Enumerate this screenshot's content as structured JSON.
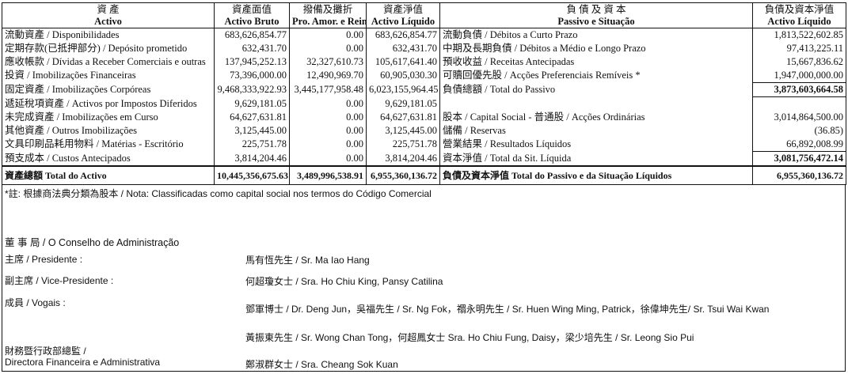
{
  "header": {
    "assets_zh": "資 產",
    "assets_pt": "Activo",
    "gross_zh": "資產面值",
    "gross_pt": "Activo Bruto",
    "amort_zh": "撥備及攤折",
    "amort_pt": "Pro. Amor. e Reinteg.",
    "net_zh": "資產淨值",
    "net_pt": "Activo Líquido",
    "liab_zh": "負 債 及 資 本",
    "liab_pt": "Passivo e Situação",
    "liabnet_zh": "負債及資本淨值",
    "liabnet_pt": "Activo Líquido"
  },
  "rows": [
    {
      "asset": "流動資產 / Disponibilidades",
      "gross": "683,626,854.77",
      "amort": "0.00",
      "net": "683,626,854.77",
      "liab": "流動負債 / Débitos a Curto Prazo",
      "lval": "1,813,522,602.85"
    },
    {
      "asset": "定期存款(已抵押部分) / Depósito prometido",
      "gross": "632,431.70",
      "amort": "0.00",
      "net": "632,431.70",
      "liab": "中期及長期負債 / Débitos a Médio e Longo Prazo",
      "lval": "97,413,225.11"
    },
    {
      "asset": "應收帳款 / Dívidas a Receber Comerciais e outras",
      "gross": "137,945,252.13",
      "amort": "32,327,610.73",
      "net": "105,617,641.40",
      "liab": "預收收益 / Receitas Antecipadas",
      "lval": "15,667,836.62"
    },
    {
      "asset": "投資 / Imobilizações Financeiras",
      "gross": "73,396,000.00",
      "amort": "12,490,969.70",
      "net": "60,905,030.30",
      "liab": "可贖回優先股 / Acções Preferenciais Remíveis *",
      "lval": "1,947,000,000.00"
    },
    {
      "asset": "固定資產 / Imobilizações Corpóreas",
      "gross": "9,468,333,922.93",
      "amort": "3,445,177,958.48",
      "net": "6,023,155,964.45",
      "liab": "負債總額 / Total do Passivo",
      "lval": "3,873,603,664.58"
    },
    {
      "asset": "遞延稅項資產 / Activos por Impostos Diferidos",
      "gross": "9,629,181.05",
      "amort": "0.00",
      "net": "9,629,181.05",
      "liab": "",
      "lval": ""
    },
    {
      "asset": "未完成資產 / Imobilizações em Curso",
      "gross": "64,627,631.81",
      "amort": "0.00",
      "net": "64,627,631.81",
      "liab": "股本 / Capital Social - 普通股 / Acções Ordinárias",
      "lval": "3,014,864,500.00"
    },
    {
      "asset": "其他資產 / Outros Imobilizações",
      "gross": "3,125,445.00",
      "amort": "0.00",
      "net": "3,125,445.00",
      "liab": "儲備 / Reservas",
      "lval": "(36.85)"
    },
    {
      "asset": "文具印刷品耗用物料 / Matérias - Escritório",
      "gross": "225,751.78",
      "amort": "0.00",
      "net": "225,751.78",
      "liab": "營業結果 / Resultados Líquidos",
      "lval": "66,892,008.99"
    },
    {
      "asset": "預支成本 / Custos Antecipados",
      "gross": "3,814,204.46",
      "amort": "0.00",
      "net": "3,814,204.46",
      "liab": "資本淨值 / Total da Sit. Líquida",
      "lval": "3,081,756,472.14"
    }
  ],
  "total": {
    "label": "資產總額 Total do Activo",
    "gross": "10,445,356,675.63",
    "amort": "3,489,996,538.91",
    "net": "6,955,360,136.72",
    "liab": "負債及資本淨值 Total do Passivo e da Situação Líquidos",
    "lval": "6,955,360,136.72"
  },
  "note": "*註: 根據商法典分類為股本 / Nota: Classificadas como capital social nos termos do Código Comercial",
  "board": {
    "title": "董 事 局 / O Conselho de Administração",
    "president_label": "主席 / Presidente :",
    "president": "馬有恆先生 / Sr. Ma Iao Hang",
    "vice_label": "副主席 / Vice-Presidente :",
    "vice": "何超瓊女士 / Sra. Ho Chiu King, Pansy Catilina",
    "members_label": "成員 / Vogais :",
    "members_1": "鄧軍博士 / Dr. Deng Jun，吳福先生 / Sr. Ng Fok，禤永明先生 / Sr. Huen Wing Ming, Patrick，徐偉坤先生/ Sr. Tsui Wai Kwan",
    "members_2": "黃振東先生 / Sr. Wong Chan Tong，何超鳳女士 Sra. Ho Chiu Fung, Daisy，梁少培先生 / Sr. Leong Sio Pui",
    "director_label_1": "財務暨行政部總監 /",
    "director_label_2": "Directora Financeira e Administrativa",
    "director": "鄭淑群女士 / Sra. Cheang Sok Kuan"
  }
}
